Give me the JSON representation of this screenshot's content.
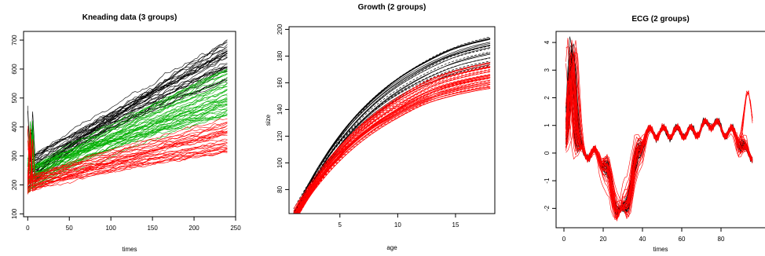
{
  "chart_data": [
    {
      "type": "line",
      "title": "Kneading data (3 groups)",
      "xlabel": "times",
      "ylabel": "",
      "xlim": [
        -5,
        250
      ],
      "ylim": [
        90,
        730
      ],
      "xticks": [
        0,
        50,
        100,
        150,
        200,
        250
      ],
      "yticks": [
        100,
        200,
        300,
        400,
        500,
        600,
        700
      ],
      "x_range": [
        0,
        240
      ],
      "series": [
        {
          "color": "#000000",
          "count": 32,
          "start": [
            180,
            290
          ],
          "end": [
            560,
            700
          ],
          "noise": 18
        },
        {
          "color": "#00b000",
          "count": 38,
          "start": [
            170,
            260
          ],
          "end": [
            440,
            610
          ],
          "noise": 16
        },
        {
          "color": "#ff0000",
          "count": 30,
          "start": [
            160,
            230
          ],
          "end": [
            300,
            430
          ],
          "noise": 14
        }
      ]
    },
    {
      "type": "line",
      "title": "Growth (2 groups)",
      "xlabel": "age",
      "ylabel": "size",
      "xlim": [
        0.6,
        18.4
      ],
      "ylim": [
        62,
        202
      ],
      "xticks": [
        5,
        10,
        15
      ],
      "yticks": [
        80,
        100,
        120,
        140,
        160,
        180,
        200
      ],
      "x_range": [
        1,
        18
      ],
      "series": [
        {
          "color": "#000000",
          "count": 22,
          "start": [
            72,
            80
          ],
          "end": [
            172,
            195
          ],
          "spurt_age": 14
        },
        {
          "color": "#ff0000",
          "count": 44,
          "start": [
            68,
            78
          ],
          "end": [
            154,
            176
          ],
          "spurt_age": 12
        }
      ]
    },
    {
      "type": "line",
      "title": "ECG (2 groups)",
      "xlabel": "times",
      "ylabel": "",
      "xlim": [
        -4,
        104
      ],
      "ylim": [
        -2.7,
        4.4
      ],
      "xticks": [
        0,
        20,
        40,
        60,
        80
      ],
      "yticks": [
        -2,
        -1,
        0,
        1,
        2,
        3,
        4
      ],
      "x_range": [
        1,
        96
      ],
      "series": [
        {
          "color": "#000000",
          "count": 30
        },
        {
          "color": "#ff0000",
          "count": 30
        }
      ]
    }
  ]
}
